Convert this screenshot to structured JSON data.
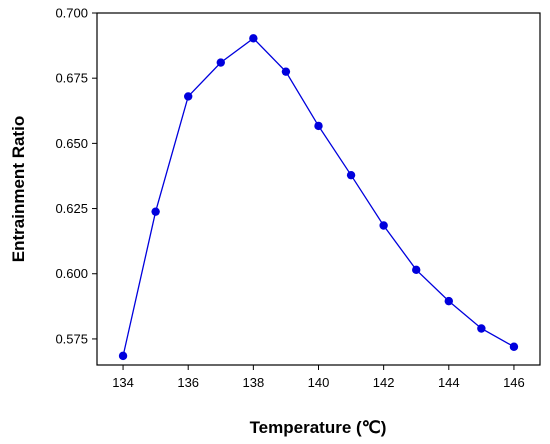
{
  "chart_data": {
    "type": "line",
    "xlabel": "Temperature (℃)",
    "ylabel": "Entrainment Ratio",
    "xlim": [
      133.2,
      146.8
    ],
    "ylim": [
      0.565,
      0.7
    ],
    "xticks": [
      134,
      136,
      138,
      140,
      142,
      144,
      146
    ],
    "yticks": [
      0.575,
      0.6,
      0.625,
      0.65,
      0.675,
      0.7
    ],
    "ytick_labels": [
      "0.575",
      "0.600",
      "0.625",
      "0.650",
      "0.675",
      "0.700"
    ],
    "grid": false,
    "series": [
      {
        "color": "#0000dd",
        "marker": "circle",
        "x": [
          134,
          135,
          136,
          137,
          138,
          139,
          140,
          141,
          142,
          143,
          144,
          145,
          146
        ],
        "y": [
          0.5685,
          0.6238,
          0.668,
          0.681,
          0.6903,
          0.6775,
          0.6567,
          0.6378,
          0.6185,
          0.6015,
          0.5895,
          0.579,
          0.572
        ]
      }
    ]
  }
}
